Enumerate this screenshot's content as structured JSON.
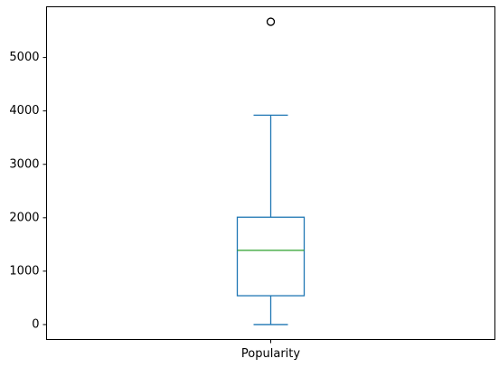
{
  "chart_data": {
    "type": "box",
    "title": "",
    "xlabel": "",
    "ylabel": "",
    "categories": [
      "Popularity"
    ],
    "boxes": [
      {
        "category": "Popularity",
        "whisker_low": 0,
        "q1": 540,
        "median": 1390,
        "q3": 2010,
        "whisker_high": 3920,
        "outliers": [
          5670
        ]
      }
    ],
    "yticks": [
      0,
      1000,
      2000,
      3000,
      4000,
      5000
    ],
    "ytick_labels": [
      "0",
      "1000",
      "2000",
      "3000",
      "4000",
      "5000"
    ],
    "ylim": [
      -280,
      5950
    ],
    "grid": false,
    "colors": {
      "box": "#1f77b4",
      "whisker": "#1f77b4",
      "median": "#2ca02c",
      "outlier": "#000000"
    }
  }
}
